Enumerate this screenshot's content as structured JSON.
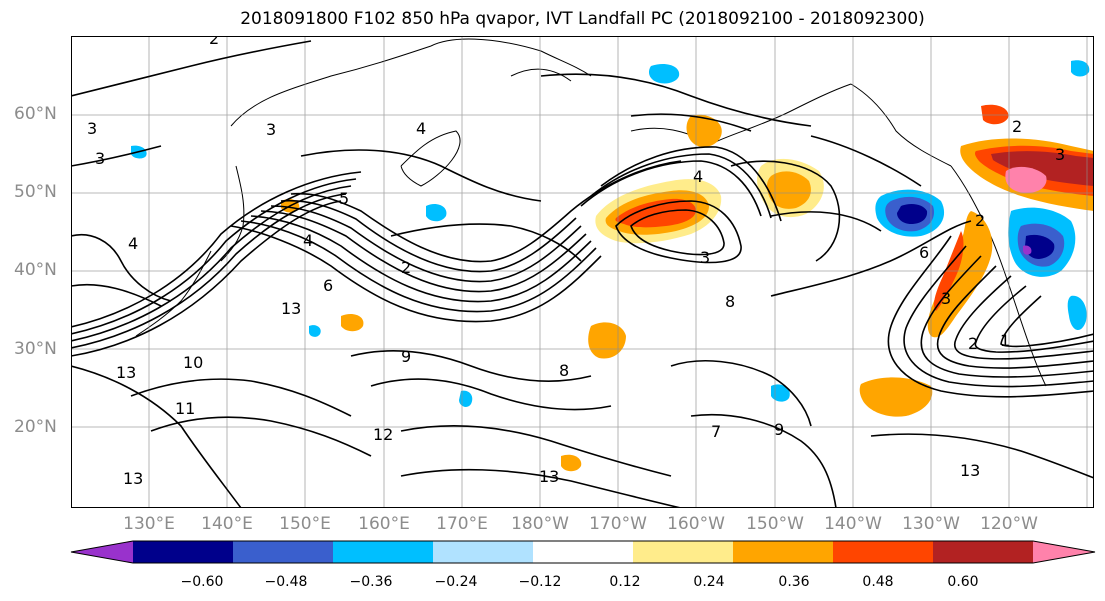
{
  "title": "2018091800 F102 850 hPa qvapor, IVT Landfall PC (2018092100 - 2018092300)",
  "lat_labels": [
    "60°N",
    "50°N",
    "40°N",
    "30°N",
    "20°N"
  ],
  "lon_labels": [
    "130°E",
    "140°E",
    "150°E",
    "160°E",
    "170°E",
    "180°W",
    "170°W",
    "160°W",
    "150°W",
    "140°W",
    "130°W",
    "120°W"
  ],
  "colorbar": {
    "colors": [
      "#9932cc",
      "#00008b",
      "#3a5fcd",
      "#00bfff",
      "#b0e2ff",
      "#ffffff",
      "#ffec8b",
      "#ffa500",
      "#ff4500",
      "#b22222",
      "#ff82ab"
    ],
    "tick_labels": [
      "−0.60",
      "−0.48",
      "−0.36",
      "−0.24",
      "−0.12",
      "0.12",
      "0.24",
      "0.36",
      "0.48",
      "0.60"
    ]
  },
  "contour_labels": [
    "2",
    "3",
    "3",
    "3",
    "4",
    "4",
    "5",
    "2",
    "4",
    "6",
    "13",
    "10",
    "11",
    "13",
    "13",
    "12",
    "9",
    "8",
    "8",
    "3",
    "4",
    "13",
    "13",
    "9",
    "6",
    "2",
    "3",
    "1",
    "2",
    "2",
    "3",
    "7"
  ]
}
